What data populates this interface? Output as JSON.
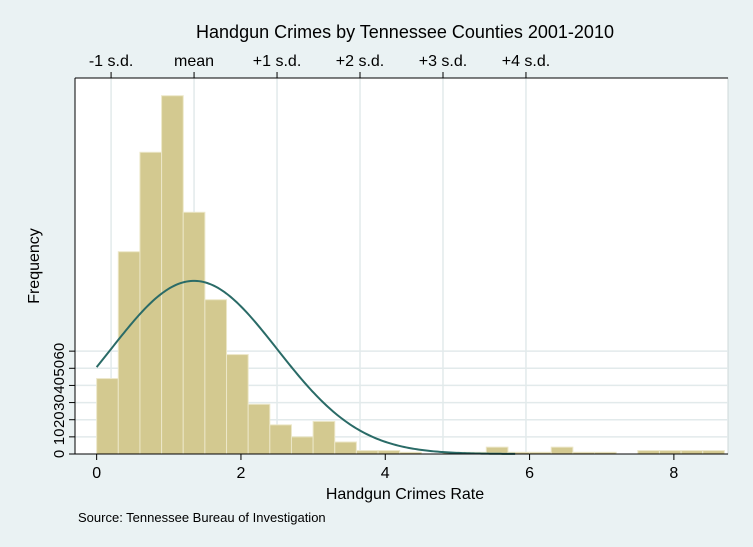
{
  "chart_data": {
    "type": "bar",
    "title": "Handgun Crimes by Tennessee Counties 2001-2010",
    "xlabel": "Handgun Crimes Rate",
    "ylabel": "Frequency",
    "note": "Source:  Tennessee Bureau of Investigation",
    "xlim": [
      -0.3,
      8.75
    ],
    "ylim": [
      0,
      210
    ],
    "x_ticks": [
      0,
      2,
      4,
      6,
      8
    ],
    "x_tick_labels": [
      "0",
      "2",
      "4",
      "6",
      "8"
    ],
    "y_ticks": [
      0,
      10,
      20,
      30,
      40,
      50,
      60
    ],
    "y_tick_labels": [
      "0",
      "10",
      "20",
      "30",
      "40",
      "50",
      "60"
    ],
    "sd_axis": {
      "positions": [
        0.2,
        1.35,
        2.5,
        3.65,
        4.8,
        5.95
      ],
      "labels": [
        "-1 s.d.",
        "mean",
        "+1 s.d.",
        "+2 s.d.",
        "+3 s.d.",
        "+4 s.d."
      ]
    },
    "bin_width": 0.3,
    "bins": [
      {
        "x0": 0.0,
        "value": 44
      },
      {
        "x0": 0.3,
        "value": 118
      },
      {
        "x0": 0.6,
        "value": 176
      },
      {
        "x0": 0.9,
        "value": 209
      },
      {
        "x0": 1.2,
        "value": 141
      },
      {
        "x0": 1.5,
        "value": 90
      },
      {
        "x0": 1.8,
        "value": 58
      },
      {
        "x0": 2.1,
        "value": 29
      },
      {
        "x0": 2.4,
        "value": 17
      },
      {
        "x0": 2.7,
        "value": 10
      },
      {
        "x0": 3.0,
        "value": 19
      },
      {
        "x0": 3.3,
        "value": 7
      },
      {
        "x0": 3.6,
        "value": 2
      },
      {
        "x0": 3.9,
        "value": 2
      },
      {
        "x0": 4.2,
        "value": 1
      },
      {
        "x0": 4.5,
        "value": 0
      },
      {
        "x0": 4.8,
        "value": 1
      },
      {
        "x0": 5.1,
        "value": 1
      },
      {
        "x0": 5.4,
        "value": 4
      },
      {
        "x0": 5.7,
        "value": 1
      },
      {
        "x0": 6.0,
        "value": 1
      },
      {
        "x0": 6.3,
        "value": 4
      },
      {
        "x0": 6.6,
        "value": 1
      },
      {
        "x0": 6.9,
        "value": 1
      },
      {
        "x0": 7.2,
        "value": 0
      },
      {
        "x0": 7.5,
        "value": 2
      },
      {
        "x0": 7.8,
        "value": 2
      },
      {
        "x0": 8.1,
        "value": 2
      },
      {
        "x0": 8.4,
        "value": 2
      }
    ],
    "normal_curve": {
      "mean": 1.35,
      "sd": 1.15,
      "peak": 101
    },
    "grid": true,
    "colors": {
      "background": "#eaf2f3",
      "plot_background": "#ffffff",
      "bar_fill": "#d3c990",
      "bar_stroke": "#ece7c8",
      "curve": "#2a6b67",
      "grid": "#e2eaeb"
    }
  }
}
